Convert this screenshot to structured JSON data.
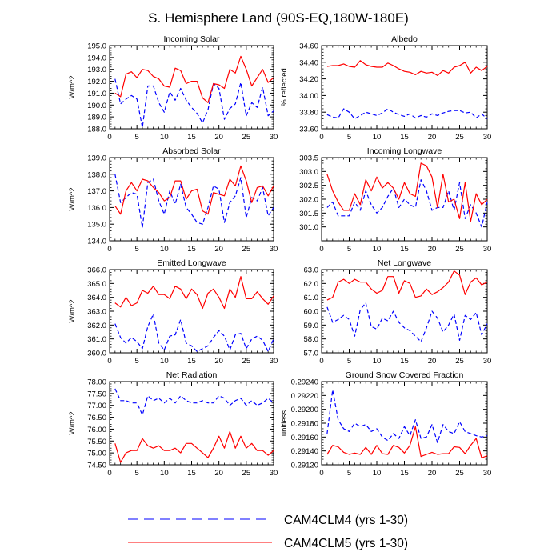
{
  "title": "S. Hemisphere Land (90S-EQ,180W-180E)",
  "colors": {
    "CAM4CLM4": "#0000ff",
    "CAM4CLM5": "#ff0000",
    "axis": "#000000"
  },
  "legend": [
    {
      "key": "CAM4CLM4",
      "label": "CAM4CLM4 (yrs 1-30)",
      "style": "dashed"
    },
    {
      "key": "CAM4CLM5",
      "label": "CAM4CLM5 (yrs 1-30)",
      "style": "solid"
    }
  ],
  "chart_data": [
    {
      "type": "line",
      "title": "Incoming Solar",
      "ylabel": "W/m^2",
      "xlim": [
        0,
        30
      ],
      "ylim": [
        188.0,
        195.0
      ],
      "xticks": [
        0,
        5,
        10,
        15,
        20,
        25,
        30
      ],
      "yticks": [
        188.0,
        189.0,
        190.0,
        191.0,
        192.0,
        193.0,
        194.0,
        195.0
      ],
      "ytick_labels": [
        "188.0",
        "189.0",
        "190.0",
        "191.0",
        "192.0",
        "193.0",
        "194.0",
        "195.0"
      ],
      "x": [
        1,
        2,
        3,
        4,
        5,
        6,
        7,
        8,
        9,
        10,
        11,
        12,
        13,
        14,
        15,
        16,
        17,
        18,
        19,
        20,
        21,
        22,
        23,
        24,
        25,
        26,
        27,
        28,
        29,
        30
      ],
      "series": [
        {
          "name": "CAM4CLM4",
          "values": [
            192.2,
            190.1,
            190.5,
            190.8,
            190.5,
            188.1,
            191.6,
            191.6,
            190.2,
            189.4,
            191.1,
            190.4,
            191.4,
            190.4,
            189.8,
            189.3,
            188.5,
            189.6,
            191.8,
            191.4,
            188.8,
            189.7,
            190.1,
            191.9,
            189.1,
            190.2,
            189.8,
            191.5,
            189.1,
            189.5
          ]
        },
        {
          "name": "CAM4CLM5",
          "values": [
            191.0,
            190.7,
            192.6,
            192.8,
            192.3,
            193.0,
            192.9,
            192.4,
            192.2,
            191.6,
            191.5,
            193.1,
            192.9,
            191.8,
            192.0,
            192.0,
            190.6,
            190.2,
            191.8,
            191.7,
            191.4,
            193.0,
            192.7,
            194.1,
            193.0,
            191.6,
            192.3,
            193.0,
            191.9,
            192.3
          ]
        }
      ]
    },
    {
      "type": "line",
      "title": "Albedo",
      "ylabel": "% reflected",
      "xlim": [
        0,
        30
      ],
      "ylim": [
        33.6,
        34.6
      ],
      "xticks": [
        0,
        5,
        10,
        15,
        20,
        25,
        30
      ],
      "yticks": [
        33.6,
        33.8,
        34.0,
        34.2,
        34.4,
        34.6
      ],
      "ytick_labels": [
        "33.60",
        "33.80",
        "34.00",
        "34.20",
        "34.40",
        "34.60"
      ],
      "x": [
        1,
        2,
        3,
        4,
        5,
        6,
        7,
        8,
        9,
        10,
        11,
        12,
        13,
        14,
        15,
        16,
        17,
        18,
        19,
        20,
        21,
        22,
        23,
        24,
        25,
        26,
        27,
        28,
        29,
        30
      ],
      "series": [
        {
          "name": "CAM4CLM4",
          "values": [
            33.77,
            33.74,
            33.73,
            33.84,
            33.8,
            33.72,
            33.76,
            33.8,
            33.78,
            33.76,
            33.79,
            33.84,
            33.8,
            33.77,
            33.75,
            33.78,
            33.73,
            33.76,
            33.74,
            33.78,
            33.76,
            33.79,
            33.81,
            33.82,
            33.82,
            33.79,
            33.8,
            33.73,
            33.78,
            33.72
          ]
        },
        {
          "name": "CAM4CLM5",
          "values": [
            34.35,
            34.36,
            34.36,
            34.38,
            34.35,
            34.34,
            34.42,
            34.37,
            34.35,
            34.34,
            34.34,
            34.39,
            34.36,
            34.32,
            34.29,
            34.28,
            34.25,
            34.29,
            34.27,
            34.28,
            34.24,
            34.3,
            34.27,
            34.34,
            34.36,
            34.4,
            34.27,
            34.34,
            34.3,
            34.35
          ]
        }
      ]
    },
    {
      "type": "line",
      "title": "Absorbed Solar",
      "ylabel": "W/m^2",
      "xlim": [
        0,
        30
      ],
      "ylim": [
        134.0,
        139.0
      ],
      "xticks": [
        0,
        5,
        10,
        15,
        20,
        25,
        30
      ],
      "yticks": [
        134.0,
        135.0,
        136.0,
        137.0,
        138.0,
        139.0
      ],
      "ytick_labels": [
        "134.0",
        "135.0",
        "136.0",
        "137.0",
        "138.0",
        "139.0"
      ],
      "x": [
        1,
        2,
        3,
        4,
        5,
        6,
        7,
        8,
        9,
        10,
        11,
        12,
        13,
        14,
        15,
        16,
        17,
        18,
        19,
        20,
        21,
        22,
        23,
        24,
        25,
        26,
        27,
        28,
        29,
        30
      ],
      "series": [
        {
          "name": "CAM4CLM4",
          "values": [
            138.0,
            136.3,
            136.6,
            136.9,
            136.8,
            134.8,
            137.5,
            137.7,
            136.4,
            135.6,
            137.0,
            136.2,
            137.4,
            136.0,
            135.6,
            135.1,
            135.0,
            136.0,
            137.3,
            137.1,
            135.1,
            136.3,
            136.7,
            137.8,
            135.4,
            136.6,
            136.4,
            137.2,
            135.5,
            136.0
          ]
        },
        {
          "name": "CAM4CLM5",
          "values": [
            136.1,
            135.6,
            137.0,
            137.5,
            137.0,
            137.7,
            137.6,
            137.2,
            136.9,
            136.4,
            136.6,
            137.6,
            137.6,
            136.5,
            137.0,
            137.1,
            135.8,
            135.6,
            136.9,
            136.8,
            136.7,
            137.7,
            137.3,
            138.5,
            137.6,
            136.3,
            137.2,
            137.3,
            136.7,
            137.3
          ]
        }
      ]
    },
    {
      "type": "line",
      "title": "Incoming Longwave",
      "ylabel": "",
      "xlim": [
        0,
        30
      ],
      "ylim": [
        300.5,
        303.5
      ],
      "xticks": [
        0,
        5,
        10,
        15,
        20,
        25,
        30
      ],
      "yticks": [
        301.0,
        301.5,
        302.0,
        302.5,
        303.0,
        303.5
      ],
      "ytick_labels": [
        "301.0",
        "301.5",
        "302.0",
        "302.5",
        "303.0",
        "303.5"
      ],
      "x": [
        1,
        2,
        3,
        4,
        5,
        6,
        7,
        8,
        9,
        10,
        11,
        12,
        13,
        14,
        15,
        16,
        17,
        18,
        19,
        20,
        21,
        22,
        23,
        24,
        25,
        26,
        27,
        28,
        29,
        30
      ],
      "series": [
        {
          "name": "CAM4CLM4",
          "values": [
            301.7,
            301.9,
            301.4,
            301.4,
            301.4,
            301.9,
            301.6,
            302.3,
            301.8,
            301.5,
            301.7,
            302.1,
            302.4,
            301.7,
            302.0,
            301.8,
            301.7,
            302.7,
            302.3,
            301.6,
            301.7,
            301.7,
            302.3,
            301.6,
            302.6,
            301.3,
            301.8,
            301.5,
            301.0,
            301.9
          ]
        },
        {
          "name": "CAM4CLM5",
          "values": [
            302.9,
            302.3,
            301.9,
            301.6,
            301.6,
            302.2,
            301.8,
            302.7,
            302.3,
            302.8,
            302.4,
            302.6,
            302.4,
            302.0,
            302.6,
            302.2,
            302.1,
            303.3,
            303.2,
            302.8,
            301.7,
            302.9,
            301.9,
            302.0,
            301.3,
            302.6,
            301.2,
            302.2,
            301.8,
            302.0
          ]
        }
      ]
    },
    {
      "type": "line",
      "title": "Emitted Longwave",
      "ylabel": "W/m^2",
      "xlim": [
        0,
        30
      ],
      "ylim": [
        360.0,
        366.0
      ],
      "xticks": [
        0,
        5,
        10,
        15,
        20,
        25,
        30
      ],
      "yticks": [
        360.0,
        361.0,
        362.0,
        363.0,
        364.0,
        365.0,
        366.0
      ],
      "ytick_labels": [
        "360.0",
        "361.0",
        "362.0",
        "363.0",
        "364.0",
        "365.0",
        "366.0"
      ],
      "x": [
        1,
        2,
        3,
        4,
        5,
        6,
        7,
        8,
        9,
        10,
        11,
        12,
        13,
        14,
        15,
        16,
        17,
        18,
        19,
        20,
        21,
        22,
        23,
        24,
        25,
        26,
        27,
        28,
        29,
        30
      ],
      "series": [
        {
          "name": "CAM4CLM4",
          "values": [
            362.1,
            361.1,
            360.7,
            361.1,
            360.8,
            360.3,
            361.9,
            362.8,
            360.7,
            360.2,
            361.2,
            361.3,
            362.4,
            360.7,
            360.5,
            360.1,
            360.3,
            360.5,
            361.1,
            361.6,
            361.2,
            360.2,
            361.3,
            361.4,
            360.3,
            361.0,
            361.2,
            360.9,
            360.1,
            361.0
          ]
        },
        {
          "name": "CAM4CLM5",
          "values": [
            363.6,
            363.3,
            364.0,
            363.4,
            363.6,
            364.5,
            364.3,
            364.8,
            364.2,
            364.2,
            363.9,
            364.8,
            364.6,
            363.9,
            364.6,
            364.2,
            363.2,
            364.3,
            364.6,
            364.0,
            363.2,
            364.6,
            364.0,
            365.5,
            363.9,
            363.9,
            364.4,
            363.9,
            363.5,
            364.1
          ]
        }
      ]
    },
    {
      "type": "line",
      "title": "Net Longwave",
      "ylabel": "",
      "xlim": [
        0,
        30
      ],
      "ylim": [
        57.0,
        63.0
      ],
      "xticks": [
        0,
        5,
        10,
        15,
        20,
        25,
        30
      ],
      "yticks": [
        57.0,
        58.0,
        59.0,
        60.0,
        61.0,
        62.0,
        63.0
      ],
      "ytick_labels": [
        "57.0",
        "58.0",
        "59.0",
        "60.0",
        "61.0",
        "62.0",
        "63.0"
      ],
      "x": [
        1,
        2,
        3,
        4,
        5,
        6,
        7,
        8,
        9,
        10,
        11,
        12,
        13,
        14,
        15,
        16,
        17,
        18,
        19,
        20,
        21,
        22,
        23,
        24,
        25,
        26,
        27,
        28,
        29,
        30
      ],
      "series": [
        {
          "name": "CAM4CLM4",
          "values": [
            60.3,
            59.2,
            59.4,
            59.7,
            59.4,
            58.2,
            60.1,
            60.6,
            58.9,
            58.7,
            59.5,
            59.3,
            60.0,
            59.2,
            58.8,
            58.6,
            58.2,
            57.8,
            58.8,
            60.0,
            59.5,
            58.5,
            59.0,
            59.8,
            57.9,
            59.7,
            59.4,
            59.9,
            58.3,
            59.1
          ]
        },
        {
          "name": "CAM4CLM5",
          "values": [
            60.8,
            61.0,
            62.1,
            62.3,
            62.0,
            62.3,
            62.1,
            62.1,
            61.6,
            61.3,
            61.5,
            62.5,
            62.5,
            61.3,
            62.2,
            62.0,
            61.0,
            61.1,
            61.6,
            61.2,
            61.4,
            61.7,
            62.1,
            62.9,
            62.6,
            61.2,
            62.1,
            62.4,
            61.9,
            62.1
          ]
        }
      ]
    },
    {
      "type": "line",
      "title": "Net Radiation",
      "ylabel": "W/m^2",
      "xlim": [
        0,
        30
      ],
      "ylim": [
        74.5,
        78.0
      ],
      "xticks": [
        0,
        5,
        10,
        15,
        20,
        25,
        30
      ],
      "yticks": [
        74.5,
        75.0,
        75.5,
        76.0,
        76.5,
        77.0,
        77.5,
        78.0
      ],
      "ytick_labels": [
        "74.50",
        "75.00",
        "75.50",
        "76.00",
        "76.50",
        "77.00",
        "77.50",
        "78.00"
      ],
      "x": [
        1,
        2,
        3,
        4,
        5,
        6,
        7,
        8,
        9,
        10,
        11,
        12,
        13,
        14,
        15,
        16,
        17,
        18,
        19,
        20,
        21,
        22,
        23,
        24,
        25,
        26,
        27,
        28,
        29,
        30
      ],
      "series": [
        {
          "name": "CAM4CLM4",
          "values": [
            77.7,
            77.2,
            77.2,
            77.1,
            77.1,
            76.6,
            77.4,
            77.2,
            77.3,
            77.1,
            77.3,
            77.1,
            77.4,
            77.2,
            77.1,
            77.1,
            77.2,
            77.1,
            77.1,
            77.4,
            77.3,
            77.0,
            77.2,
            77.3,
            77.0,
            77.2,
            77.0,
            77.1,
            77.3,
            77.1
          ]
        },
        {
          "name": "CAM4CLM5",
          "values": [
            75.4,
            74.6,
            75.0,
            75.1,
            75.1,
            75.6,
            75.3,
            75.2,
            75.3,
            75.1,
            75.1,
            75.2,
            75.0,
            75.4,
            75.4,
            75.2,
            75.0,
            74.8,
            75.2,
            75.7,
            75.2,
            75.9,
            75.2,
            75.7,
            75.2,
            75.4,
            75.1,
            75.1,
            74.9,
            75.1
          ]
        }
      ]
    },
    {
      "type": "line",
      "title": "Ground Snow Covered Fraction",
      "ylabel": "unitless",
      "xlim": [
        0,
        30
      ],
      "ylim": [
        0.2912,
        0.2924
      ],
      "xticks": [
        0,
        5,
        10,
        15,
        20,
        25,
        30
      ],
      "yticks": [
        0.2912,
        0.2914,
        0.2916,
        0.2918,
        0.292,
        0.2922,
        0.2924
      ],
      "ytick_labels": [
        "0.29120",
        "0.29140",
        "0.29160",
        "0.29180",
        "0.29200",
        "0.29220",
        "0.29240"
      ],
      "x": [
        1,
        2,
        3,
        4,
        5,
        6,
        7,
        8,
        9,
        10,
        11,
        12,
        13,
        14,
        15,
        16,
        17,
        18,
        19,
        20,
        21,
        22,
        23,
        24,
        25,
        26,
        27,
        28,
        29,
        30
      ],
      "series": [
        {
          "name": "CAM4CLM4",
          "values": [
            0.29165,
            0.29228,
            0.29185,
            0.29172,
            0.29168,
            0.2918,
            0.29175,
            0.29178,
            0.29168,
            0.29172,
            0.2916,
            0.29155,
            0.29165,
            0.29158,
            0.29175,
            0.29162,
            0.29185,
            0.29158,
            0.2916,
            0.29178,
            0.29152,
            0.29178,
            0.29168,
            0.29165,
            0.29182,
            0.29168,
            0.29165,
            0.29162,
            0.2916,
            0.29162
          ]
        },
        {
          "name": "CAM4CLM5",
          "values": [
            0.29135,
            0.29148,
            0.29146,
            0.29138,
            0.29135,
            0.29137,
            0.29135,
            0.29145,
            0.29135,
            0.29148,
            0.29136,
            0.29135,
            0.29148,
            0.29145,
            0.29137,
            0.29148,
            0.29175,
            0.29132,
            0.29135,
            0.29138,
            0.29135,
            0.29136,
            0.29136,
            0.29146,
            0.29145,
            0.29136,
            0.29148,
            0.29158,
            0.2913,
            0.29133
          ]
        }
      ]
    }
  ]
}
